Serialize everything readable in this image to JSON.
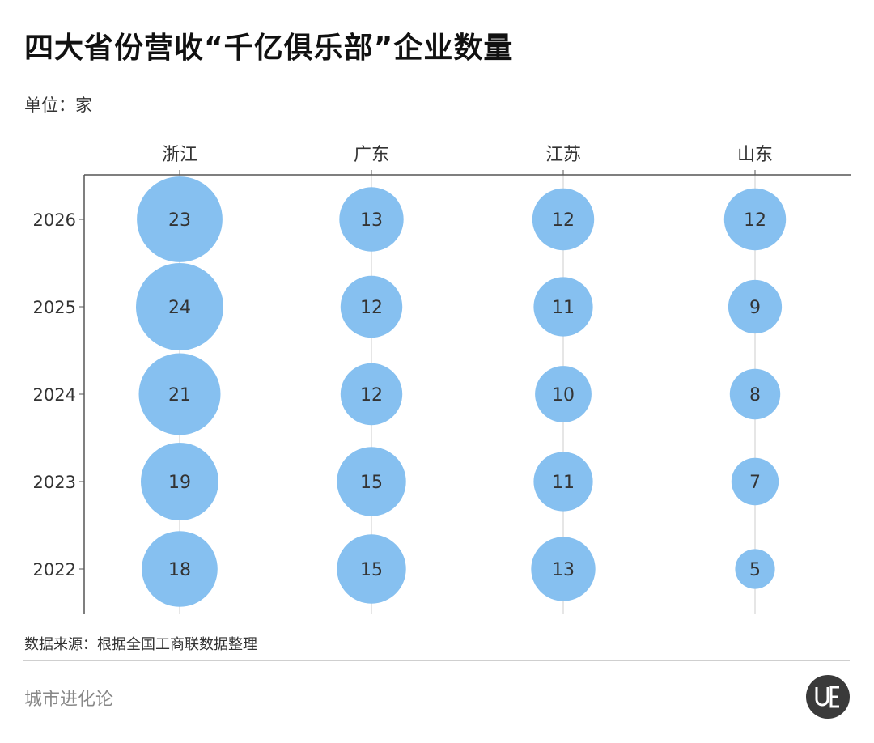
{
  "header": {
    "title": "四大省份营收“千亿俱乐部”企业数量",
    "unit": "单位：家"
  },
  "footer": {
    "source": "数据来源：根据全国工商联数据整理",
    "brand": "城市进化论",
    "logo_text": "UE"
  },
  "colors": {
    "bubble": "#86c0f0",
    "axis": "#555555",
    "gridline": "#cccccc",
    "label": "#333333"
  },
  "chart_data": {
    "type": "bubble",
    "provinces": [
      "浙江",
      "广东",
      "江苏",
      "山东"
    ],
    "years": [
      "2026",
      "2025",
      "2024",
      "2023",
      "2022"
    ],
    "values": [
      [
        23,
        13,
        12,
        12
      ],
      [
        24,
        12,
        11,
        9
      ],
      [
        21,
        12,
        10,
        8
      ],
      [
        19,
        15,
        11,
        7
      ],
      [
        18,
        15,
        13,
        5
      ]
    ],
    "legend": "none",
    "grid": true
  }
}
